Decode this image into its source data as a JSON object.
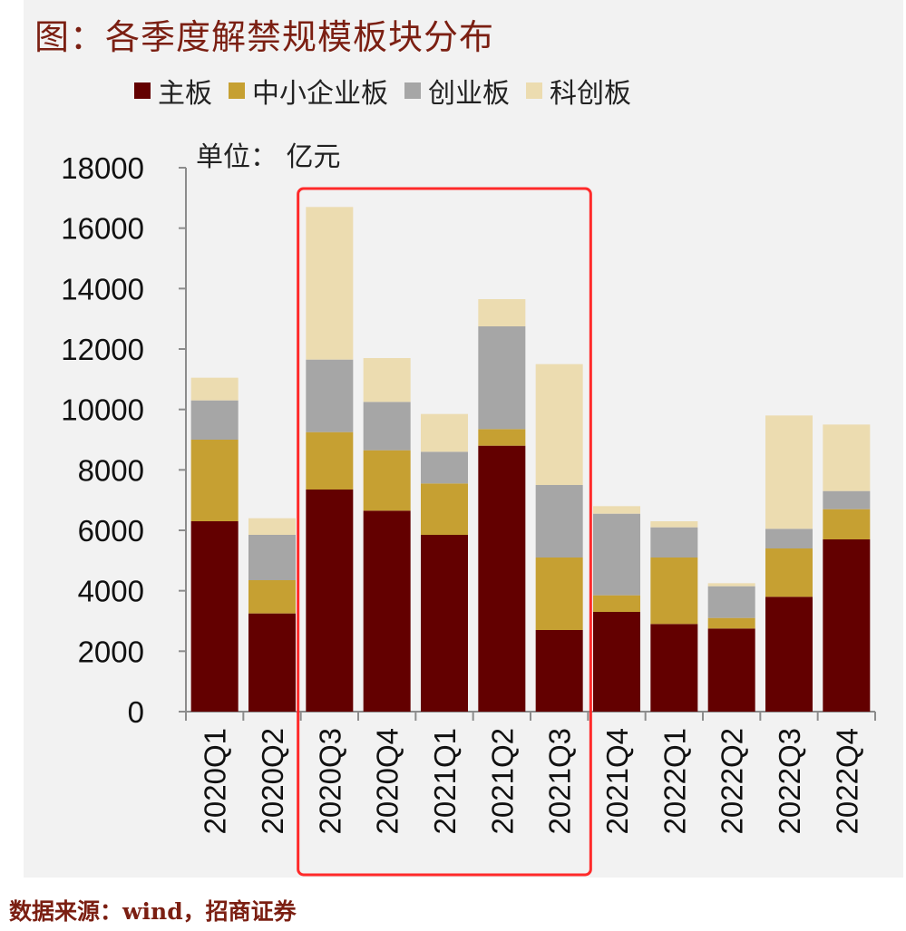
{
  "title": "图：各季度解禁规模板块分布",
  "unit_label": "单位： 亿元",
  "source": "数据来源：wind，招商证券",
  "colors": {
    "main_board": "#630000",
    "sme_board": "#c6a032",
    "chinext": "#a6a6a6",
    "star_market": "#ecdcb0",
    "highlight_box": "#ff2a2a",
    "axis": "#8c8c8c",
    "title": "#7b1f12"
  },
  "chart_data": {
    "type": "bar",
    "stacked": true,
    "title": "各季度解禁规模板块分布",
    "ylabel": "单位： 亿元",
    "xlabel": "",
    "ylim": [
      0,
      18000
    ],
    "yticks": [
      0,
      2000,
      4000,
      6000,
      8000,
      10000,
      12000,
      14000,
      16000,
      18000
    ],
    "legend_position": "top",
    "categories": [
      "2020Q1",
      "2020Q2",
      "2020Q3",
      "2020Q4",
      "2021Q1",
      "2021Q2",
      "2021Q3",
      "2021Q4",
      "2022Q1",
      "2022Q2",
      "2022Q3",
      "2022Q4"
    ],
    "series": [
      {
        "name": "主板",
        "color": "#630000",
        "values": [
          6300,
          3250,
          7350,
          6650,
          5850,
          8800,
          2700,
          3300,
          2900,
          2750,
          3800,
          5700
        ]
      },
      {
        "name": "中小企业板",
        "color": "#c6a032",
        "values": [
          2700,
          1100,
          1900,
          2000,
          1700,
          550,
          2400,
          550,
          2200,
          350,
          1600,
          1000
        ]
      },
      {
        "name": "创业板",
        "color": "#a6a6a6",
        "values": [
          1300,
          1500,
          2400,
          1600,
          1050,
          3400,
          2400,
          2700,
          1000,
          1050,
          650,
          600
        ]
      },
      {
        "name": "科创板",
        "color": "#ecdcb0",
        "values": [
          750,
          550,
          5050,
          1450,
          1250,
          900,
          4000,
          250,
          200,
          100,
          3750,
          2200
        ]
      }
    ],
    "highlight": {
      "from": "2020Q3",
      "to": "2021Q3"
    }
  }
}
